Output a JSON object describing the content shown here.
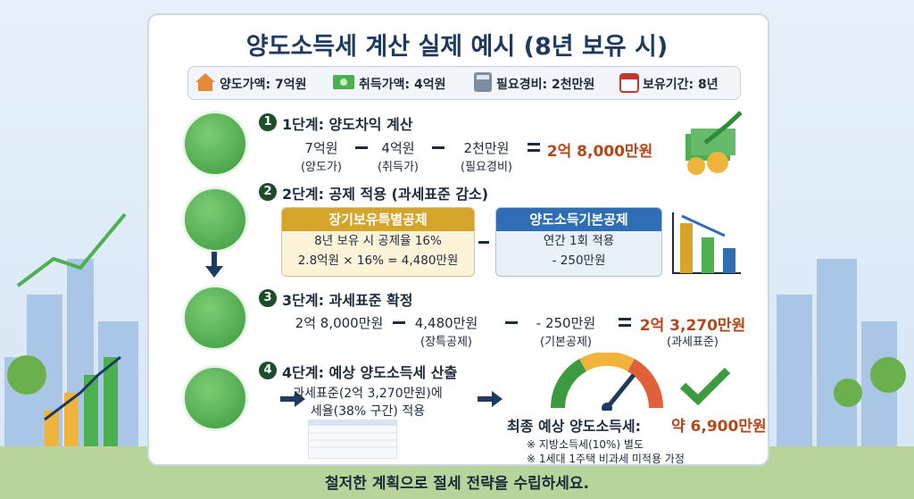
{
  "title": "양도소득세 계산 실제 예시 (8년 보유 시)",
  "info": [
    "양도가액: 7억원",
    "취득가액: 4억원",
    "필요경비: 2천만원",
    "보유기간: 8년"
  ],
  "steps": [
    {
      "number": "1",
      "title": "1단계: 양도차익 계산",
      "terms": [
        {
          "value": "7억원",
          "note": "(양도가)"
        },
        {
          "value": "4억원",
          "note": "(취득가)"
        },
        {
          "value": "2천만원",
          "note": "(필요경비)"
        }
      ],
      "result": {
        "value": "2억 8,000만원"
      }
    },
    {
      "number": "2",
      "title": "2단계: 공제 적용 (과세표준 감소)",
      "boxes": [
        {
          "header": "장기보유특별공제",
          "lines": [
            "8년 보유 시 공제율 16%",
            "2.8억원 × 16% = 4,480만원"
          ]
        },
        {
          "header": "양도소득기본공제",
          "lines": [
            "연간 1회 적용",
            "- 250만원"
          ]
        }
      ]
    },
    {
      "number": "3",
      "title": "3단계: 과세표준 확정",
      "terms": [
        {
          "value": "2억 8,000만원"
        },
        {
          "value": "4,480만원",
          "note": "(장특공제)"
        },
        {
          "value": "- 250만원",
          "note": "(기본공제)"
        }
      ],
      "result": {
        "value": "2억 3,270만원",
        "note": "(과세표준)"
      }
    },
    {
      "number": "4",
      "title": "4단계: 예상 양도소득세 산출",
      "lines": [
        "과세표준(2억 3,270만원)에",
        "세율(38% 구간) 적용"
      ],
      "final_label": "최종 예상 양도소득세:",
      "final_value": "약 6,900만원",
      "notes": [
        "※ 지방소득세(10%) 별도",
        "※ 1세대 1주택 비과세 미적용 가정"
      ]
    }
  ],
  "footer": "철저한 계획으로 절세 전략을 수립하세요."
}
